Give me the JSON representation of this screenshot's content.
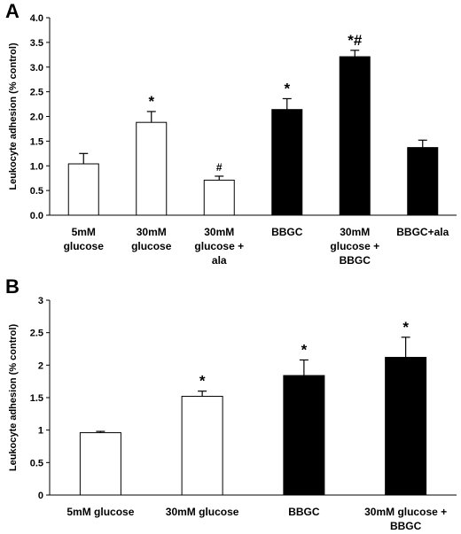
{
  "chart_data": [
    {
      "type": "bar",
      "panel": "A",
      "ylabel": "Leukocyte adhesion (% control)",
      "ylim": [
        0,
        4.0
      ],
      "yticks": [
        "0.0",
        "0.5",
        "1.0",
        "1.5",
        "2.0",
        "2.5",
        "3.0",
        "3.5",
        "4.0"
      ],
      "grid": false,
      "categories": [
        [
          "5mM",
          "glucose"
        ],
        [
          "30mM",
          "glucose"
        ],
        [
          "30mM",
          "glucose +",
          "ala"
        ],
        [
          "BBGC"
        ],
        [
          "30mM",
          "glucose +",
          "BBGC"
        ],
        [
          "BBGC+ala"
        ]
      ],
      "values": [
        1.04,
        1.88,
        0.71,
        2.14,
        3.21,
        1.37
      ],
      "errors": [
        0.21,
        0.22,
        0.08,
        0.22,
        0.13,
        0.15
      ],
      "fill": [
        "white",
        "white",
        "white",
        "black",
        "black",
        "black"
      ],
      "annotations": [
        "",
        "*",
        "#",
        "*",
        "*#",
        ""
      ]
    },
    {
      "type": "bar",
      "panel": "B",
      "ylabel": "Leukocyte adhesion (% control)",
      "ylim": [
        0,
        3
      ],
      "yticks": [
        "0",
        "0.5",
        "1",
        "1.5",
        "2",
        "2.5",
        "3"
      ],
      "grid": false,
      "categories": [
        [
          "5mM glucose"
        ],
        [
          "30mM glucose"
        ],
        [
          "BBGC"
        ],
        [
          "30mM glucose +",
          "BBGC"
        ]
      ],
      "values": [
        0.96,
        1.52,
        1.84,
        2.12
      ],
      "errors": [
        0.02,
        0.08,
        0.24,
        0.31
      ],
      "fill": [
        "white",
        "white",
        "black",
        "black"
      ],
      "annotations": [
        "",
        "*",
        "*",
        "*"
      ]
    }
  ],
  "colors": {
    "bar_light": "#ffffff",
    "bar_dark": "#000000",
    "axis": "#000000"
  }
}
